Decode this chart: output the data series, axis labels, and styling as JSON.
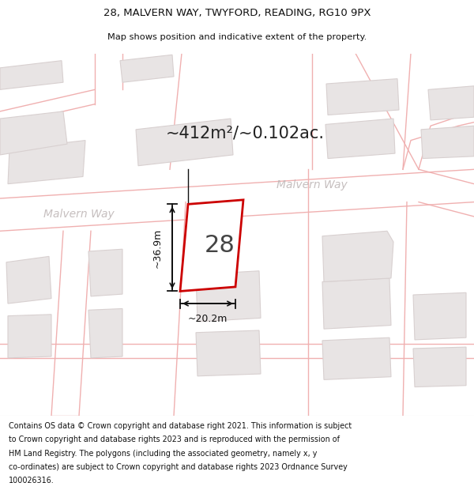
{
  "title_line1": "28, MALVERN WAY, TWYFORD, READING, RG10 9PX",
  "title_line2": "Map shows position and indicative extent of the property.",
  "area_text": "~412m²/~0.102ac.",
  "street_label_left": "Malvern Way",
  "street_label_right": "Malvern Way",
  "property_number": "28",
  "dim_height": "~36.9m",
  "dim_width": "~20.2m",
  "footer_lines": [
    "Contains OS data © Crown copyright and database right 2021. This information is subject",
    "to Crown copyright and database rights 2023 and is reproduced with the permission of",
    "HM Land Registry. The polygons (including the associated geometry, namely x, y",
    "co-ordinates) are subject to Crown copyright and database rights 2023 Ordnance Survey",
    "100026316."
  ],
  "map_bg": "#fafafa",
  "road_line_color": "#f0b0b0",
  "building_fill": "#e8e4e4",
  "building_edge": "#d8d0d0",
  "highlight_edge": "#cc0000",
  "dim_color": "#111111",
  "text_color": "#222222",
  "street_label_color": "#c0b8b8",
  "area_text_color": "#222222"
}
